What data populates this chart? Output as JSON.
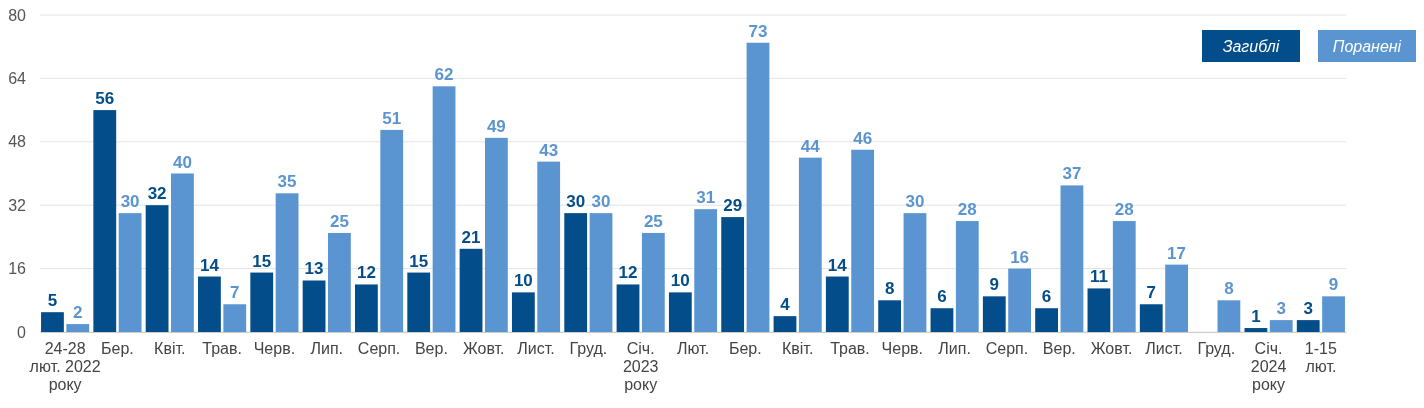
{
  "chart_data": {
    "type": "bar",
    "categories": [
      "24-28\nлют. 2022\nроку",
      "Бер.",
      "Квіт.",
      "Трав.",
      "Черв.",
      "Лип.",
      "Серп.",
      "Вер.",
      "Жовт.",
      "Лист.",
      "Груд.",
      "Січ.\n2023\nроку",
      "Лют.",
      "Бер.",
      "Квіт.",
      "Трав.",
      "Черв.",
      "Лип.",
      "Серп.",
      "Вер.",
      "Жовт.",
      "Лист.",
      "Груд.",
      "Січ.\n2024\nроку",
      "1-15\nлют."
    ],
    "series": [
      {
        "name": "Загиблі",
        "color": "#034d8a",
        "values": [
          5,
          56,
          32,
          14,
          15,
          13,
          12,
          15,
          21,
          10,
          30,
          12,
          10,
          29,
          4,
          14,
          8,
          6,
          9,
          6,
          11,
          7,
          null,
          1,
          3
        ]
      },
      {
        "name": "Поранені",
        "color": "#5b95d1",
        "values": [
          2,
          30,
          40,
          7,
          35,
          25,
          51,
          62,
          49,
          43,
          30,
          25,
          31,
          73,
          44,
          46,
          30,
          28,
          16,
          37,
          28,
          17,
          8,
          3,
          9
        ]
      }
    ],
    "ylim": [
      0,
      80
    ],
    "yticks": [
      0,
      16,
      32,
      48,
      64,
      80
    ],
    "grid": "y",
    "legend": "top right",
    "data_labels": true
  }
}
